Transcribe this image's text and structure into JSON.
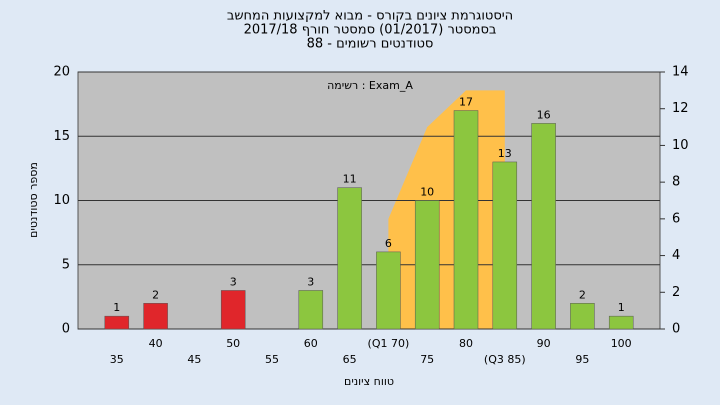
{
  "chart_data": {
    "type": "bar",
    "title": [
      "היסטוגרמת ציונים בקורס - מבוא למקצועות המחשב",
      "בסמסטר (01/2017) סמסטר חורף 2017/18",
      "88 - סטודנטים רשומים"
    ],
    "annotation": "רשימה : Exam_A",
    "x_label": "טווח ציונים",
    "y_label": "מספר סטודנטים",
    "categories": [
      "35",
      "40",
      "45",
      "50",
      "55",
      "60",
      "65",
      "(Q1 70)",
      "75",
      "80",
      "(Q3 85)",
      "90",
      "95",
      "100"
    ],
    "values": [
      1,
      2,
      null,
      3,
      null,
      3,
      11,
      6,
      10,
      17,
      13,
      16,
      2,
      1
    ],
    "colors": [
      "#e0262b",
      "#e0262b",
      null,
      "#e0262b",
      null,
      "#8cc63f",
      "#8cc63f",
      "#8cc63f",
      "#8cc63f",
      "#8cc63f",
      "#8cc63f",
      "#8cc63f",
      "#8cc63f",
      "#8cc63f"
    ],
    "area": {
      "x": [
        70,
        75,
        80,
        85
      ],
      "values": [
        6,
        11,
        13,
        13
      ],
      "color": "#ffc04a",
      "axis": "y2"
    },
    "xlim": [
      30,
      105
    ],
    "ylim": [
      0,
      20
    ],
    "yticks": [
      0,
      5,
      10,
      15,
      20
    ],
    "y2lim": [
      0,
      14
    ],
    "y2ticks": [
      0,
      2,
      4,
      6,
      8,
      10,
      12,
      14
    ],
    "grid": true
  }
}
